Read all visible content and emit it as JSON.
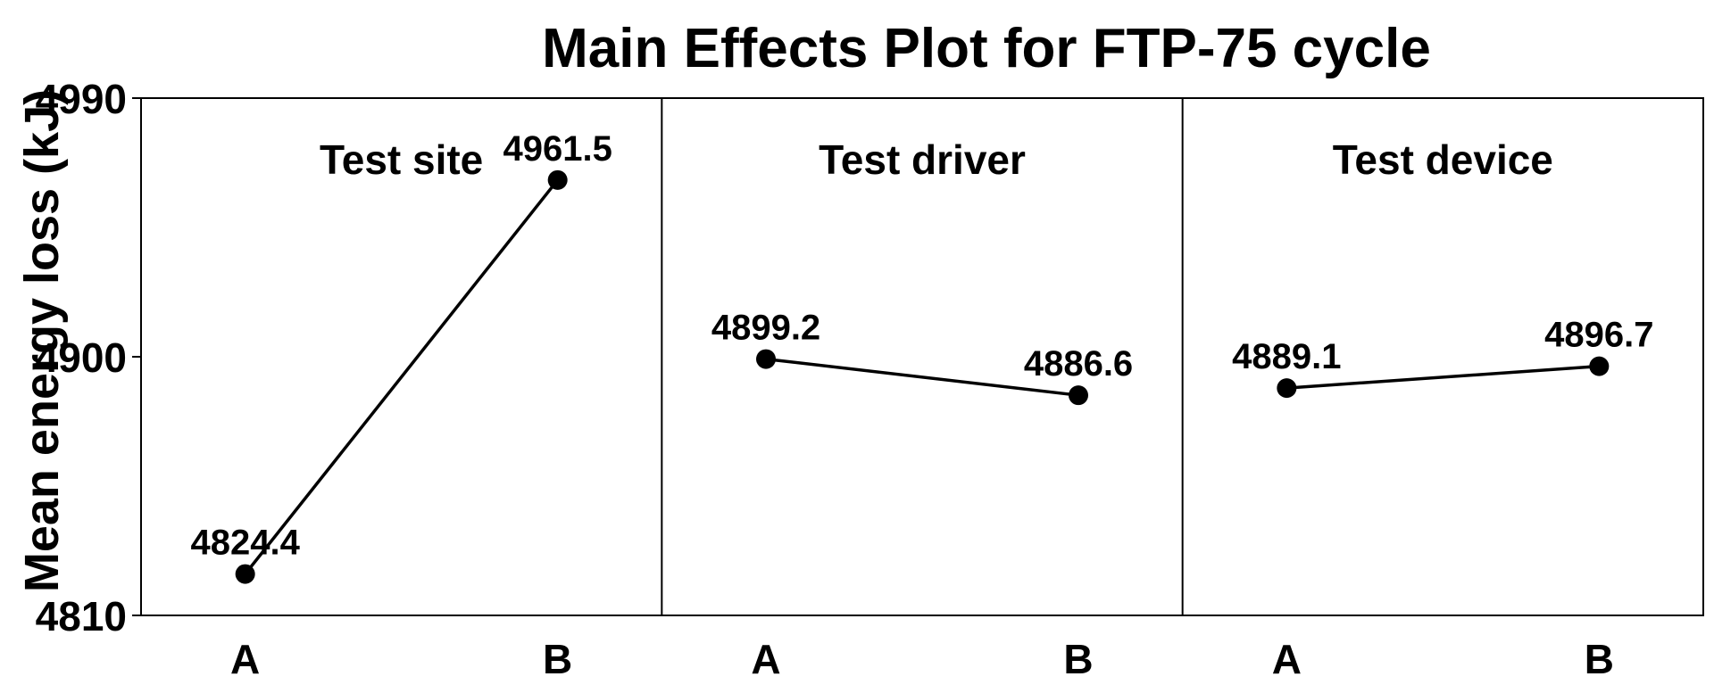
{
  "chart_data": {
    "type": "line",
    "title": "Main Effects Plot for FTP-75 cycle",
    "ylabel": "Mean energy loss (kJ)",
    "xlabel": "",
    "ylim": [
      4810,
      4990
    ],
    "yticks": [
      4810,
      4900,
      4990
    ],
    "grid": false,
    "panels": [
      {
        "label": "Test site",
        "categories": [
          "A",
          "B"
        ],
        "values": [
          4824.4,
          4961.5
        ],
        "data_labels": [
          "4824.4",
          "4961.5"
        ]
      },
      {
        "label": "Test driver",
        "categories": [
          "A",
          "B"
        ],
        "values": [
          4899.2,
          4886.6
        ],
        "data_labels": [
          "4899.2",
          "4886.6"
        ]
      },
      {
        "label": "Test device",
        "categories": [
          "A",
          "B"
        ],
        "values": [
          4889.1,
          4896.7
        ],
        "data_labels": [
          "4889.1",
          "4896.7"
        ]
      }
    ]
  },
  "colors": {
    "line": "#000000",
    "marker": "#000000",
    "background": "#ffffff"
  }
}
